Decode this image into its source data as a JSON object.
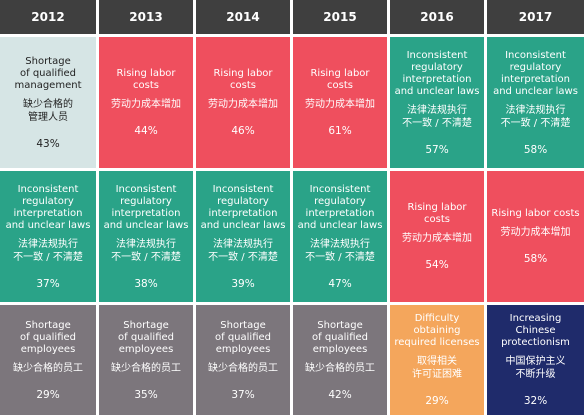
{
  "chart_data": {
    "type": "table",
    "columns": [
      "2012",
      "2013",
      "2014",
      "2015",
      "2016",
      "2017"
    ],
    "colors": {
      "header": "#3f3f3f",
      "rising_labor_costs": "#ef4f5e",
      "inconsistent_regulatory": "#2aa388",
      "shortage_of_qualified": "#7c767c",
      "shortage_of_qualified_management": "#d6e5e5",
      "difficulty_licenses": "#f4a65c",
      "chinese_protectionism": "#1f2b6b"
    },
    "rows": [
      [
        {
          "en": "Shortage\nof qualified\nmanagement",
          "zh": "缺少合格的\n管理人员",
          "value": "43%",
          "color_key": "shortage_of_qualified_management"
        },
        {
          "en": "Rising labor costs",
          "zh": "劳动力成本增加",
          "value": "44%",
          "color_key": "rising_labor_costs"
        },
        {
          "en": "Rising labor costs",
          "zh": "劳动力成本增加",
          "value": "46%",
          "color_key": "rising_labor_costs"
        },
        {
          "en": "Rising labor costs",
          "zh": "劳动力成本增加",
          "value": "61%",
          "color_key": "rising_labor_costs"
        },
        {
          "en": "Inconsistent\nregulatory\ninterpretation\nand unclear laws",
          "zh": "法律法规执行\n不一致 / 不清楚",
          "value": "57%",
          "color_key": "inconsistent_regulatory"
        },
        {
          "en": "Inconsistent\nregulatory\ninterpretation\nand unclear laws",
          "zh": "法律法规执行\n不一致 / 不清楚",
          "value": "58%",
          "color_key": "inconsistent_regulatory"
        }
      ],
      [
        {
          "en": "Inconsistent\nregulatory\ninterpretation\nand unclear laws",
          "zh": "法律法规执行\n不一致 / 不清楚",
          "value": "37%",
          "color_key": "inconsistent_regulatory"
        },
        {
          "en": "Inconsistent\nregulatory\ninterpretation\nand unclear laws",
          "zh": "法律法规执行\n不一致 / 不清楚",
          "value": "38%",
          "color_key": "inconsistent_regulatory"
        },
        {
          "en": "Inconsistent\nregulatory\ninterpretation\nand unclear laws",
          "zh": "法律法规执行\n不一致 / 不清楚",
          "value": "39%",
          "color_key": "inconsistent_regulatory"
        },
        {
          "en": "Inconsistent\nregulatory\ninterpretation\nand unclear laws",
          "zh": "法律法规执行\n不一致 / 不清楚",
          "value": "47%",
          "color_key": "inconsistent_regulatory"
        },
        {
          "en": "Rising labor costs",
          "zh": "劳动力成本增加",
          "value": "54%",
          "color_key": "rising_labor_costs"
        },
        {
          "en": "Rising labor costs",
          "zh": "劳动力成本增加",
          "value": "58%",
          "color_key": "rising_labor_costs"
        }
      ],
      [
        {
          "en": "Shortage\nof qualified\nemployees",
          "zh": "缺少合格的员工",
          "value": "29%",
          "color_key": "shortage_of_qualified"
        },
        {
          "en": "Shortage\nof qualified\nemployees",
          "zh": "缺少合格的员工",
          "value": "35%",
          "color_key": "shortage_of_qualified"
        },
        {
          "en": "Shortage\nof qualified\nemployees",
          "zh": "缺少合格的员工",
          "value": "37%",
          "color_key": "shortage_of_qualified"
        },
        {
          "en": "Shortage\nof qualified\nemployees",
          "zh": "缺少合格的员工",
          "value": "42%",
          "color_key": "shortage_of_qualified"
        },
        {
          "en": "Difficulty\nobtaining\nrequired licenses",
          "zh": "取得相关\n许可证困难",
          "value": "29%",
          "color_key": "difficulty_licenses"
        },
        {
          "en": "Increasing\nChinese\nprotectionism",
          "zh": "中国保护主义\n不断升级",
          "value": "32%",
          "color_key": "chinese_protectionism"
        }
      ]
    ]
  }
}
